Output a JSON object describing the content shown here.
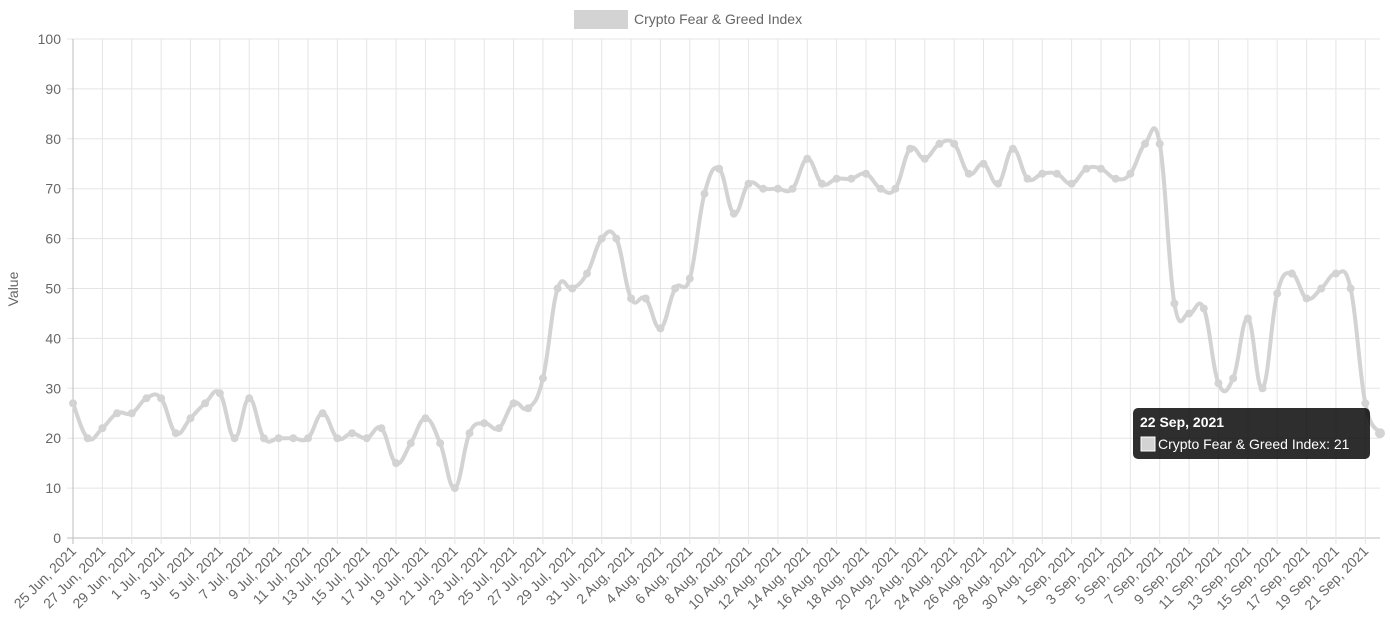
{
  "chart_data": {
    "type": "line",
    "legend": {
      "label": "Crypto Fear & Greed Index",
      "position": "top"
    },
    "ylabel": "Value",
    "ylim": [
      0,
      100
    ],
    "ystep": 10,
    "grid": true,
    "series_color": "#d3d3d3",
    "x": [
      "25 Jun, 2021",
      "26 Jun, 2021",
      "27 Jun, 2021",
      "28 Jun, 2021",
      "29 Jun, 2021",
      "30 Jun, 2021",
      "1 Jul, 2021",
      "2 Jul, 2021",
      "3 Jul, 2021",
      "4 Jul, 2021",
      "5 Jul, 2021",
      "6 Jul, 2021",
      "7 Jul, 2021",
      "8 Jul, 2021",
      "9 Jul, 2021",
      "10 Jul, 2021",
      "11 Jul, 2021",
      "12 Jul, 2021",
      "13 Jul, 2021",
      "14 Jul, 2021",
      "15 Jul, 2021",
      "16 Jul, 2021",
      "17 Jul, 2021",
      "18 Jul, 2021",
      "19 Jul, 2021",
      "20 Jul, 2021",
      "21 Jul, 2021",
      "22 Jul, 2021",
      "23 Jul, 2021",
      "24 Jul, 2021",
      "25 Jul, 2021",
      "26 Jul, 2021",
      "27 Jul, 2021",
      "28 Jul, 2021",
      "29 Jul, 2021",
      "30 Jul, 2021",
      "31 Jul, 2021",
      "1 Aug, 2021",
      "2 Aug, 2021",
      "3 Aug, 2021",
      "4 Aug, 2021",
      "5 Aug, 2021",
      "6 Aug, 2021",
      "7 Aug, 2021",
      "8 Aug, 2021",
      "9 Aug, 2021",
      "10 Aug, 2021",
      "11 Aug, 2021",
      "12 Aug, 2021",
      "13 Aug, 2021",
      "14 Aug, 2021",
      "15 Aug, 2021",
      "16 Aug, 2021",
      "17 Aug, 2021",
      "18 Aug, 2021",
      "19 Aug, 2021",
      "20 Aug, 2021",
      "21 Aug, 2021",
      "22 Aug, 2021",
      "23 Aug, 2021",
      "24 Aug, 2021",
      "25 Aug, 2021",
      "26 Aug, 2021",
      "27 Aug, 2021",
      "28 Aug, 2021",
      "29 Aug, 2021",
      "30 Aug, 2021",
      "31 Aug, 2021",
      "1 Sep, 2021",
      "2 Sep, 2021",
      "3 Sep, 2021",
      "4 Sep, 2021",
      "5 Sep, 2021",
      "6 Sep, 2021",
      "7 Sep, 2021",
      "8 Sep, 2021",
      "9 Sep, 2021",
      "10 Sep, 2021",
      "11 Sep, 2021",
      "12 Sep, 2021",
      "13 Sep, 2021",
      "14 Sep, 2021",
      "15 Sep, 2021",
      "16 Sep, 2021",
      "17 Sep, 2021",
      "18 Sep, 2021",
      "19 Sep, 2021",
      "20 Sep, 2021",
      "21 Sep, 2021",
      "22 Sep, 2021"
    ],
    "series": [
      {
        "name": "Crypto Fear & Greed Index",
        "values": [
          27,
          20,
          22,
          25,
          25,
          28,
          28,
          21,
          24,
          27,
          29,
          20,
          28,
          20,
          20,
          20,
          20,
          25,
          20,
          21,
          20,
          22,
          15,
          19,
          24,
          19,
          10,
          21,
          23,
          22,
          27,
          26,
          32,
          50,
          50,
          53,
          60,
          60,
          48,
          48,
          42,
          50,
          52,
          69,
          74,
          65,
          71,
          70,
          70,
          70,
          76,
          71,
          72,
          72,
          73,
          70,
          70,
          78,
          76,
          79,
          79,
          73,
          75,
          71,
          78,
          72,
          73,
          73,
          71,
          74,
          74,
          72,
          73,
          79,
          79,
          47,
          45,
          46,
          31,
          32,
          44,
          30,
          49,
          53,
          48,
          50,
          53,
          50,
          27,
          21
        ]
      }
    ],
    "tooltip": {
      "title": "22 Sep, 2021",
      "label": "Crypto Fear & Greed Index: 21",
      "point_index": 89
    }
  }
}
